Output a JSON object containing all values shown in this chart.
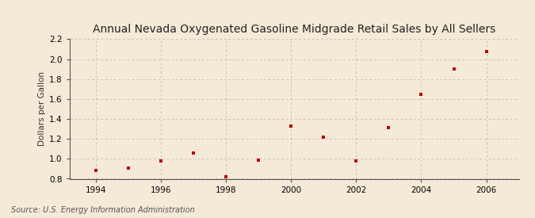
{
  "years": [
    1994,
    1995,
    1996,
    1997,
    1998,
    1999,
    2000,
    2001,
    2002,
    2003,
    2004,
    2005,
    2006
  ],
  "values": [
    0.88,
    0.91,
    0.98,
    1.06,
    0.82,
    0.99,
    1.33,
    1.22,
    0.98,
    1.31,
    1.65,
    1.9,
    2.08
  ],
  "title": "Annual Nevada Oxygenated Gasoline Midgrade Retail Sales by All Sellers",
  "ylabel": "Dollars per Gallon",
  "source": "Source: U.S. Energy Information Administration",
  "ylim": [
    0.8,
    2.2
  ],
  "xlim": [
    1993.2,
    2007.0
  ],
  "yticks": [
    0.8,
    1.0,
    1.2,
    1.4,
    1.6,
    1.8,
    2.0,
    2.2
  ],
  "xticks": [
    1994,
    1996,
    1998,
    2000,
    2002,
    2004,
    2006
  ],
  "marker_color": "#bb0000",
  "marker": "s",
  "marker_size": 3.5,
  "background_color": "#f5ead8",
  "grid_color": "#999999",
  "title_fontsize": 10,
  "label_fontsize": 7.5,
  "tick_fontsize": 7.5,
  "source_fontsize": 7
}
